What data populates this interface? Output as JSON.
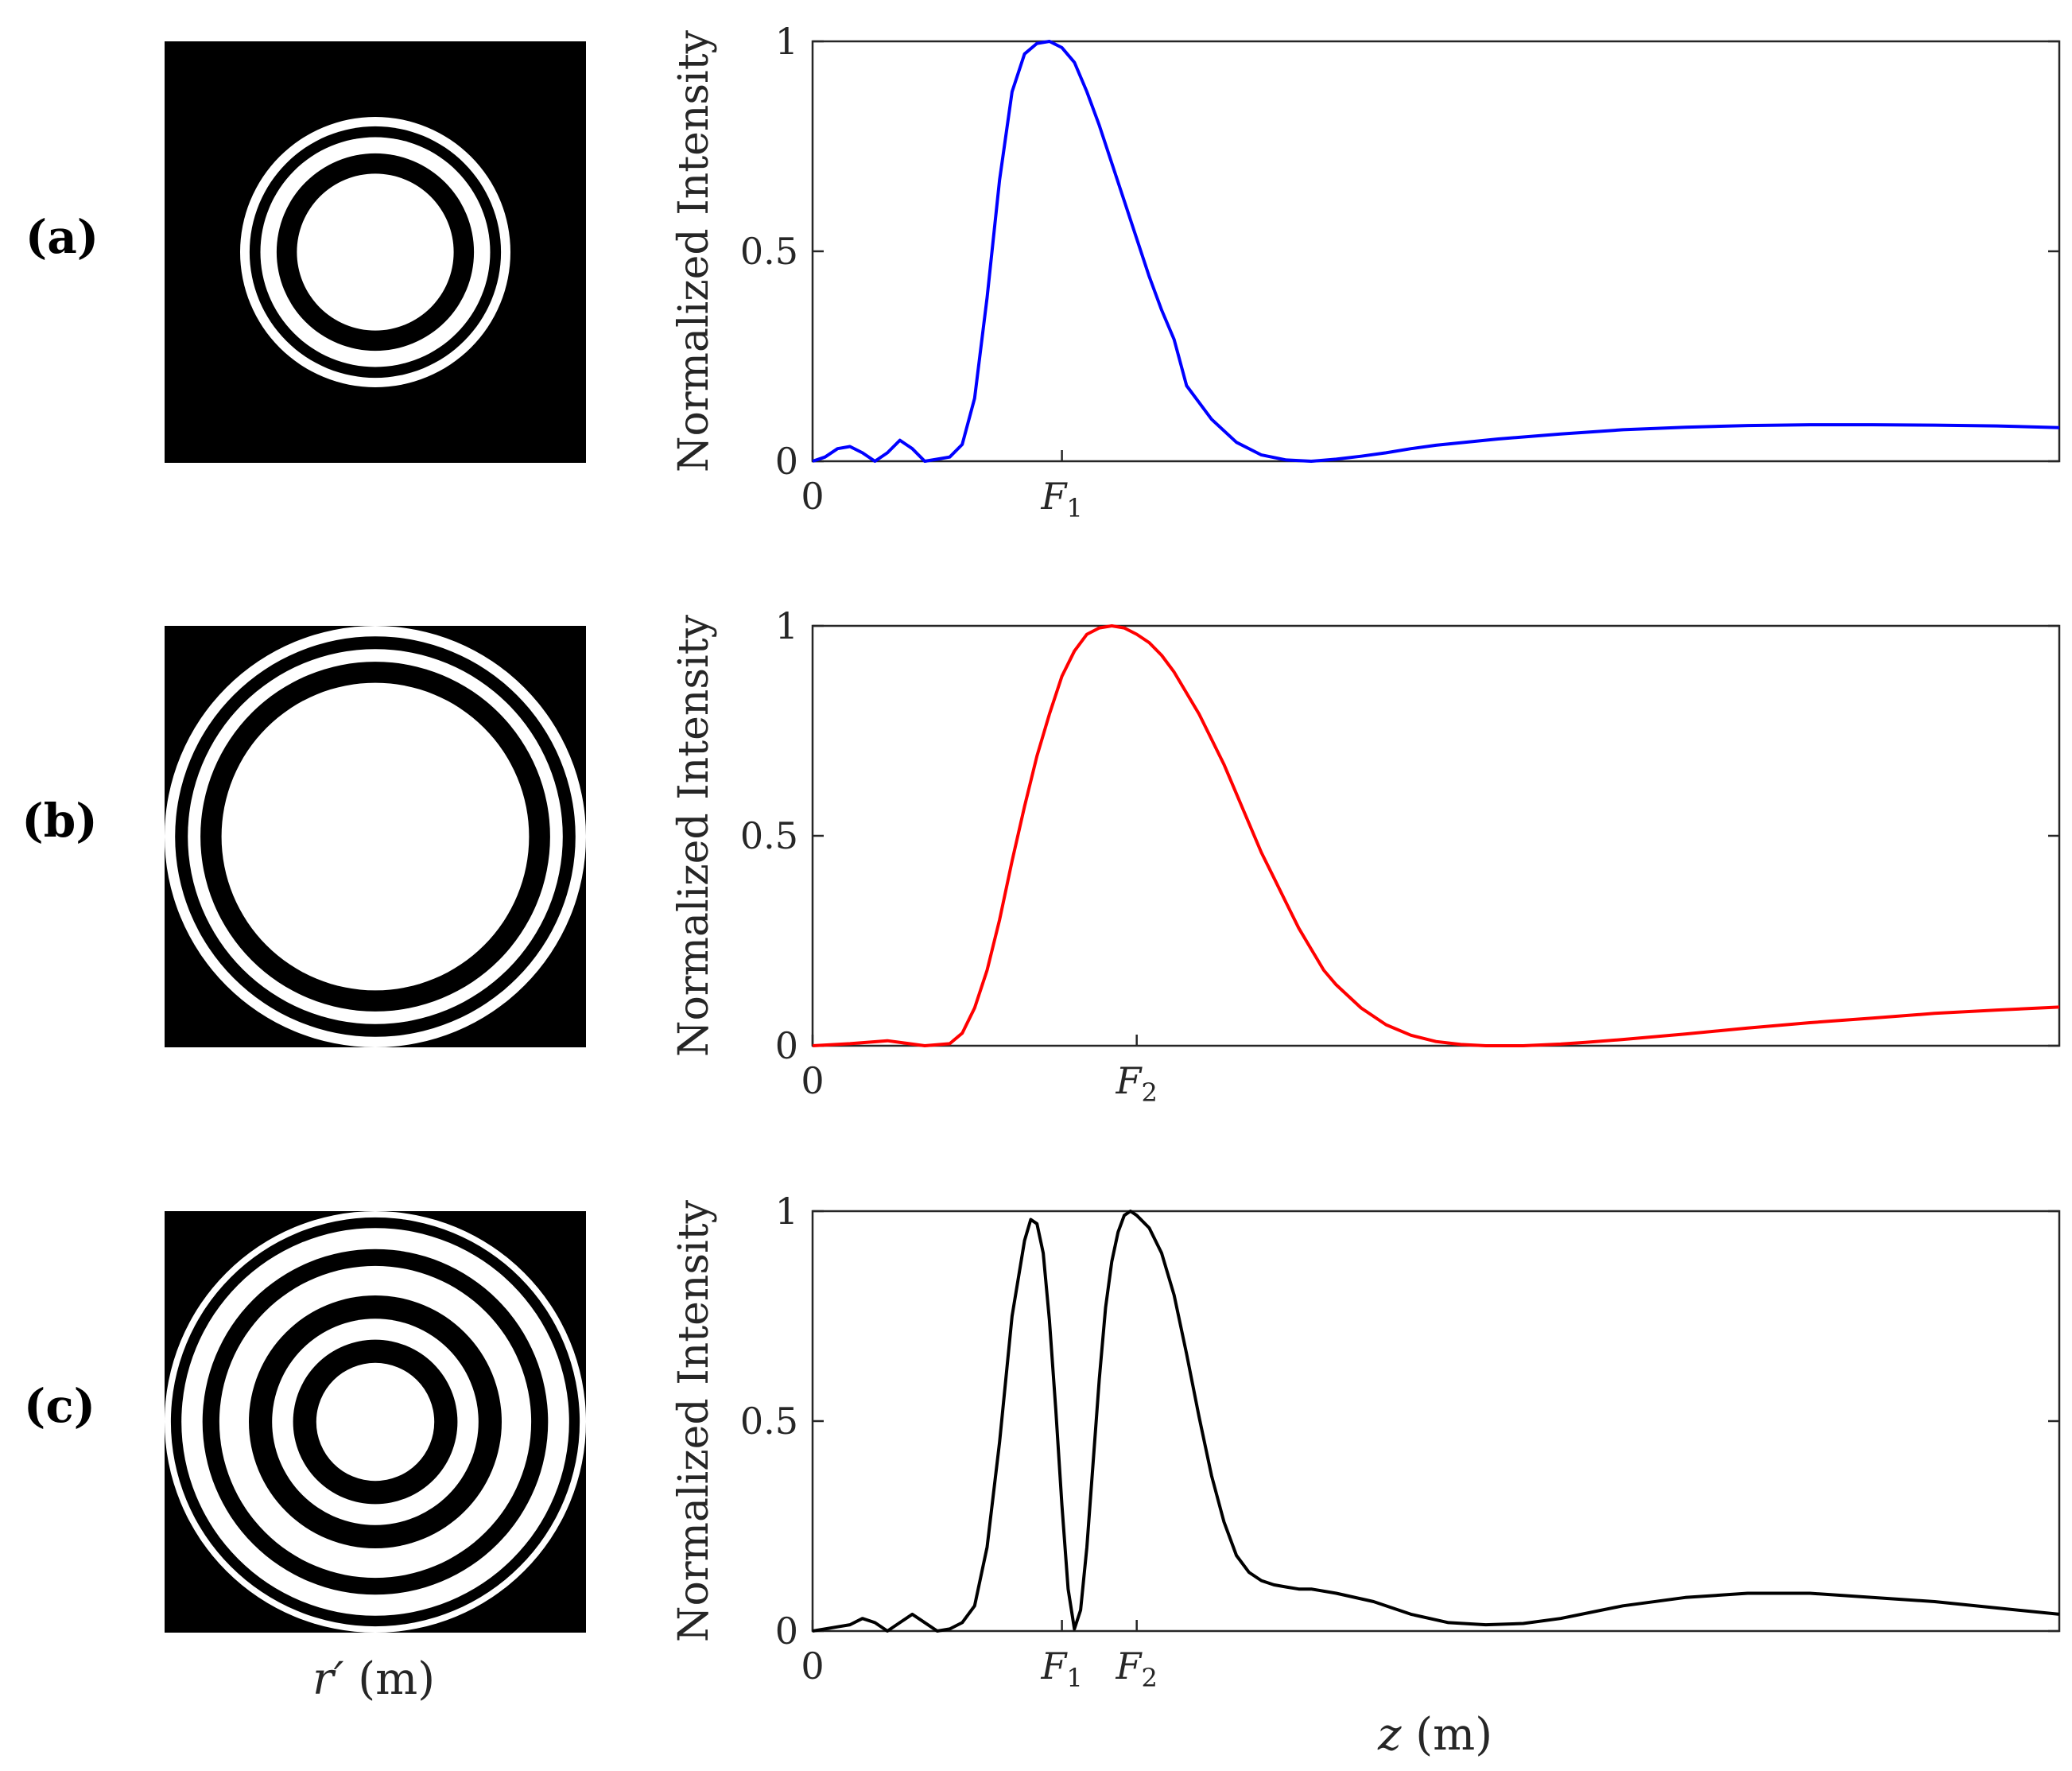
{
  "panel_labels": [
    "(a)",
    "(b)",
    "(c)"
  ],
  "zone_plate_xlabel": "r′ (m)",
  "shared_xlabel": "z (m)",
  "zone_plates": [
    {
      "name": "plate-a",
      "rings_outer_to_inner": [
        {
          "r": 1.0,
          "color": "#ffffff"
        },
        {
          "r": 0.93,
          "color": "#000000"
        },
        {
          "r": 0.85,
          "color": "#ffffff"
        },
        {
          "r": 0.73,
          "color": "#000000"
        },
        {
          "r": 0.58,
          "color": "#ffffff"
        }
      ]
    },
    {
      "name": "plate-b",
      "rings_outer_to_inner": [
        {
          "r": 1.0,
          "color": "#ffffff"
        },
        {
          "r": 0.95,
          "color": "#000000"
        },
        {
          "r": 0.89,
          "color": "#ffffff"
        },
        {
          "r": 0.83,
          "color": "#000000"
        },
        {
          "r": 0.73,
          "color": "#ffffff"
        }
      ]
    },
    {
      "name": "plate-c",
      "rings_outer_to_inner": [
        {
          "r": 1.0,
          "color": "#ffffff"
        },
        {
          "r": 0.97,
          "color": "#000000"
        },
        {
          "r": 0.92,
          "color": "#ffffff"
        },
        {
          "r": 0.82,
          "color": "#000000"
        },
        {
          "r": 0.74,
          "color": "#ffffff"
        },
        {
          "r": 0.6,
          "color": "#000000"
        },
        {
          "r": 0.49,
          "color": "#ffffff"
        },
        {
          "r": 0.39,
          "color": "#000000"
        },
        {
          "r": 0.28,
          "color": "#ffffff"
        }
      ]
    }
  ],
  "chart_data": [
    {
      "type": "line",
      "panel": "(a)",
      "ylabel": "Normalized Intensity",
      "color": "#0000ff",
      "xlim": [
        0,
        100
      ],
      "ylim": [
        0,
        1
      ],
      "yticks": [
        0,
        0.5,
        1
      ],
      "ytick_labels": [
        "0",
        "0.5",
        "1"
      ],
      "xticks": [
        0,
        20
      ],
      "xtick_labels": [
        {
          "main": "0",
          "sub": ""
        },
        {
          "main": "F",
          "sub": "1"
        }
      ],
      "x": [
        0,
        1,
        2,
        3,
        4,
        5,
        6,
        7,
        8,
        9,
        10,
        11,
        12,
        13,
        14,
        15,
        16,
        17,
        18,
        19,
        20,
        21,
        22,
        23,
        24,
        25,
        26,
        27,
        28,
        29,
        30,
        32,
        34,
        36,
        38,
        40,
        42,
        44,
        46,
        48,
        50,
        55,
        60,
        65,
        70,
        75,
        80,
        85,
        90,
        95,
        100
      ],
      "y": [
        0,
        0.01,
        0.03,
        0.035,
        0.02,
        0.0,
        0.02,
        0.05,
        0.03,
        0.0,
        0.005,
        0.01,
        0.04,
        0.15,
        0.39,
        0.67,
        0.88,
        0.97,
        0.995,
        1.0,
        0.985,
        0.95,
        0.88,
        0.8,
        0.71,
        0.62,
        0.53,
        0.44,
        0.36,
        0.29,
        0.18,
        0.1,
        0.045,
        0.015,
        0.003,
        0.0,
        0.005,
        0.012,
        0.02,
        0.03,
        0.038,
        0.053,
        0.065,
        0.075,
        0.081,
        0.085,
        0.087,
        0.087,
        0.086,
        0.084,
        0.08
      ]
    },
    {
      "type": "line",
      "panel": "(b)",
      "ylabel": "Normalized Intensity",
      "color": "#ff0000",
      "xlim": [
        0,
        100
      ],
      "ylim": [
        0,
        1
      ],
      "yticks": [
        0,
        0.5,
        1
      ],
      "ytick_labels": [
        "0",
        "0.5",
        "1"
      ],
      "xticks": [
        0,
        26
      ],
      "xtick_labels": [
        {
          "main": "0",
          "sub": ""
        },
        {
          "main": "F",
          "sub": "2"
        }
      ],
      "x": [
        0,
        3,
        6,
        9,
        11,
        12,
        13,
        14,
        15,
        16,
        17,
        18,
        19,
        20,
        21,
        22,
        23,
        24,
        25,
        26,
        27,
        28,
        29,
        30,
        31,
        32,
        33,
        34,
        35,
        36,
        37,
        38,
        39,
        40,
        41,
        42,
        44,
        46,
        48,
        50,
        52,
        54,
        57,
        60,
        62,
        65,
        70,
        75,
        80,
        85,
        90,
        95,
        100
      ],
      "y": [
        0,
        0.005,
        0.012,
        0.0,
        0.005,
        0.03,
        0.09,
        0.18,
        0.3,
        0.44,
        0.57,
        0.69,
        0.79,
        0.88,
        0.94,
        0.98,
        0.995,
        1.0,
        0.995,
        0.98,
        0.96,
        0.93,
        0.89,
        0.84,
        0.79,
        0.73,
        0.67,
        0.6,
        0.53,
        0.46,
        0.4,
        0.34,
        0.28,
        0.23,
        0.18,
        0.145,
        0.09,
        0.05,
        0.025,
        0.01,
        0.003,
        0.0,
        0.0,
        0.004,
        0.008,
        0.015,
        0.028,
        0.042,
        0.055,
        0.066,
        0.077,
        0.085,
        0.092
      ]
    },
    {
      "type": "line",
      "panel": "(c)",
      "ylabel": "Normalized Intensity",
      "color": "#000000",
      "xlim": [
        0,
        100
      ],
      "ylim": [
        0,
        1
      ],
      "yticks": [
        0,
        0.5,
        1
      ],
      "ytick_labels": [
        "0",
        "0.5",
        "1"
      ],
      "xticks": [
        0,
        20,
        26
      ],
      "xtick_labels": [
        {
          "main": "0",
          "sub": ""
        },
        {
          "main": "F",
          "sub": "1"
        },
        {
          "main": "F",
          "sub": "2"
        }
      ],
      "x": [
        0,
        2,
        3,
        4,
        5,
        6,
        7,
        8,
        9,
        10,
        11,
        12,
        13,
        14,
        15,
        16,
        17,
        17.5,
        18,
        18.5,
        19,
        19.5,
        20,
        20.5,
        21,
        21.5,
        22,
        22.5,
        23,
        23.5,
        24,
        24.5,
        25,
        25.5,
        26,
        27,
        28,
        29,
        30,
        31,
        32,
        33,
        34,
        35,
        36,
        37,
        38,
        39,
        40,
        42,
        45,
        48,
        51,
        54,
        57,
        60,
        65,
        70,
        75,
        80,
        85,
        90,
        95,
        100
      ],
      "y": [
        0,
        0.01,
        0.015,
        0.03,
        0.02,
        0.0,
        0.02,
        0.04,
        0.02,
        0.0,
        0.005,
        0.02,
        0.06,
        0.2,
        0.45,
        0.75,
        0.93,
        0.98,
        0.97,
        0.9,
        0.74,
        0.53,
        0.3,
        0.1,
        0.005,
        0.05,
        0.2,
        0.4,
        0.6,
        0.77,
        0.88,
        0.95,
        0.99,
        1.0,
        0.99,
        0.96,
        0.9,
        0.8,
        0.66,
        0.51,
        0.37,
        0.26,
        0.18,
        0.14,
        0.12,
        0.11,
        0.105,
        0.1,
        0.1,
        0.09,
        0.07,
        0.04,
        0.02,
        0.015,
        0.018,
        0.03,
        0.06,
        0.08,
        0.09,
        0.09,
        0.08,
        0.07,
        0.055,
        0.04
      ]
    }
  ]
}
